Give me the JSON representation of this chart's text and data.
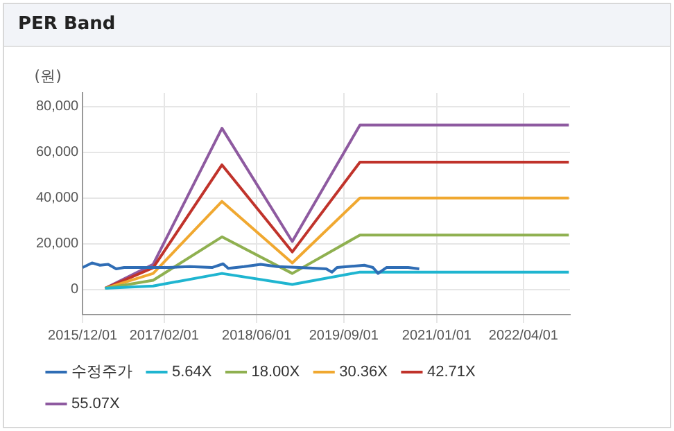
{
  "chart_data": {
    "type": "line",
    "title": "PER Band",
    "ylabel": "(원)",
    "xlim": [
      "2015-12-01",
      "2022-12-01"
    ],
    "ylim": [
      -11000,
      86000
    ],
    "xticks": [
      {
        "value": "2015-12-01",
        "label": "2015/12/01"
      },
      {
        "value": "2017-02-01",
        "label": "2017/02/01"
      },
      {
        "value": "2018-06-01",
        "label": "2018/06/01"
      },
      {
        "value": "2019-09-01",
        "label": "2019/09/01"
      },
      {
        "value": "2021-01-01",
        "label": "2021/01/01"
      },
      {
        "value": "2022-04-01",
        "label": "2022/04/01"
      }
    ],
    "yticks": [
      {
        "value": 0,
        "label": "0"
      },
      {
        "value": 20000,
        "label": "20,000"
      },
      {
        "value": 40000,
        "label": "40,000"
      },
      {
        "value": 60000,
        "label": "60,000"
      },
      {
        "value": 80000,
        "label": "80,000"
      }
    ],
    "grid": true,
    "legend": "bottom",
    "marker": "none",
    "line_style": "solid",
    "series": [
      {
        "name": "수정주가",
        "color": "#2f6db5",
        "x": [
          "2015-12-01",
          "2016-01-19",
          "2016-03-01",
          "2016-04-13",
          "2016-05-25",
          "2016-07-06",
          "2016-11-01",
          "2017-02-25",
          "2017-06-15",
          "2017-10-10",
          "2017-12-07",
          "2018-01-03",
          "2018-03-28",
          "2018-06-22",
          "2018-09-17",
          "2019-01-10",
          "2019-06-01",
          "2019-07-01",
          "2019-07-28",
          "2019-12-18",
          "2020-02-01",
          "2020-02-28",
          "2020-04-12",
          "2020-08-04",
          "2020-10-01"
        ],
        "values": [
          9600,
          11600,
          10600,
          11000,
          9000,
          9600,
          9600,
          9600,
          10000,
          9600,
          11200,
          9200,
          10000,
          11000,
          10000,
          9600,
          9000,
          7600,
          9600,
          10600,
          9600,
          7000,
          9600,
          9600,
          9000
        ]
      },
      {
        "name": "5.64X",
        "color": "#1fb5d0",
        "x": [
          "2016-03-28",
          "2016-12-05",
          "2017-12-01",
          "2018-12-05",
          "2019-11-25",
          "2022-11-25"
        ],
        "values": [
          500,
          1500,
          7000,
          2200,
          7600,
          7600
        ]
      },
      {
        "name": "18.00X",
        "color": "#8fb050",
        "x": [
          "2016-03-28",
          "2016-12-05",
          "2017-12-01",
          "2018-12-05",
          "2019-11-25",
          "2022-11-25"
        ],
        "values": [
          500,
          4000,
          23000,
          7000,
          23800,
          23800
        ]
      },
      {
        "name": "30.36X",
        "color": "#f0a830",
        "x": [
          "2016-03-28",
          "2016-12-05",
          "2017-12-01",
          "2018-12-05",
          "2019-11-25",
          "2022-11-25"
        ],
        "values": [
          500,
          7000,
          38500,
          11600,
          40000,
          40000
        ]
      },
      {
        "name": "42.71X",
        "color": "#c0332b",
        "x": [
          "2016-03-28",
          "2016-12-05",
          "2017-12-01",
          "2018-12-05",
          "2019-11-25",
          "2022-11-25"
        ],
        "values": [
          500,
          9500,
          54500,
          16400,
          55700,
          55700
        ]
      },
      {
        "name": "55.07X",
        "color": "#8e5aa0",
        "x": [
          "2016-03-28",
          "2016-12-05",
          "2017-12-01",
          "2018-12-05",
          "2019-11-25",
          "2022-11-25"
        ],
        "values": [
          500,
          11000,
          70500,
          21000,
          71900,
          71900
        ]
      }
    ]
  }
}
